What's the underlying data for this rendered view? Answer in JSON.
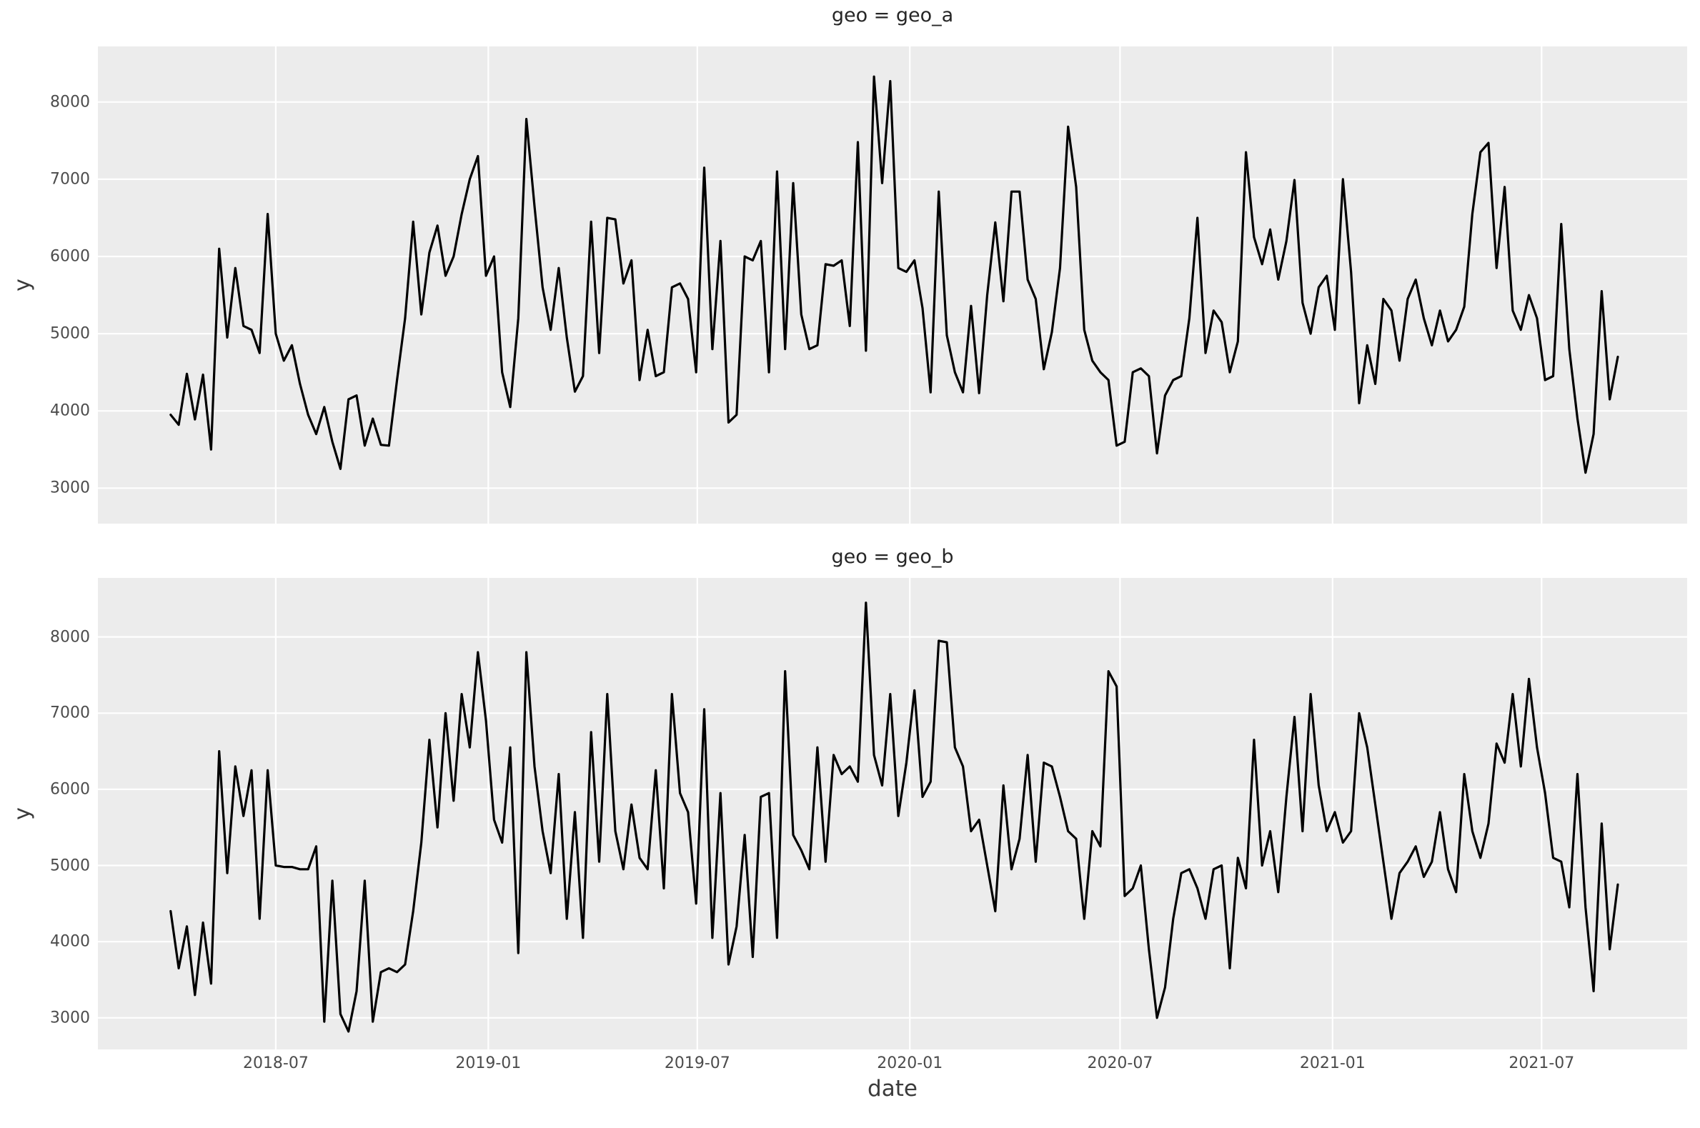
{
  "styles": {
    "panel_bg": "#ececec",
    "grid_color": "#ffffff",
    "line_color": "#000000",
    "tick_color": "#4c4c4c",
    "title_color": "#262626"
  },
  "chart_data": [
    {
      "type": "line",
      "title": "geo = geo_a",
      "xlabel": "date",
      "ylabel": "y",
      "legend": false,
      "grid": true,
      "x_ticks": [
        "2018-07",
        "2019-01",
        "2019-07",
        "2020-01",
        "2020-07",
        "2021-01",
        "2021-07"
      ],
      "show_x_tick_labels": false,
      "y_ticks": [
        8000,
        7000,
        6000,
        5000,
        4000,
        3000
      ],
      "xlim": [
        "2018-01-28",
        "2021-11-04"
      ],
      "ylim": [
        2540,
        8720
      ],
      "series": [
        {
          "name": "y",
          "color": "#000000",
          "start_date": "2018-04-01",
          "interval_days": 7,
          "values": [
            3950,
            3820,
            4480,
            3890,
            4470,
            3500,
            6100,
            4950,
            5850,
            5100,
            5050,
            4750,
            6550,
            5000,
            4650,
            4850,
            4350,
            3950,
            3700,
            4050,
            3600,
            3250,
            4150,
            4200,
            3550,
            3900,
            3560,
            3550,
            4400,
            5200,
            6450,
            5250,
            6050,
            6400,
            5750,
            6000,
            6550,
            7000,
            7300,
            5750,
            6000,
            4500,
            4050,
            5200,
            7780,
            6650,
            5600,
            5050,
            5850,
            4950,
            4250,
            4450,
            6450,
            4750,
            6500,
            6480,
            5650,
            5950,
            4400,
            5050,
            4450,
            4500,
            5600,
            5650,
            5450,
            4500,
            7150,
            4800,
            6200,
            3850,
            3950,
            6000,
            5950,
            6200,
            4500,
            7100,
            4800,
            6950,
            5250,
            4800,
            4850,
            5900,
            5880,
            5950,
            5100,
            7480,
            4780,
            8330,
            6950,
            8270,
            5850,
            5800,
            5950,
            5330,
            4240,
            6840,
            4980,
            4500,
            4240,
            5360,
            4230,
            5500,
            6440,
            5420,
            6840,
            6840,
            5700,
            5450,
            4540,
            5020,
            5850,
            7680,
            6900,
            5050,
            4650,
            4500,
            4400,
            3550,
            3600,
            4500,
            4550,
            4450,
            3450,
            4200,
            4400,
            4450,
            5200,
            6500,
            4750,
            5300,
            5150,
            4500,
            4900,
            7350,
            6250,
            5900,
            6350,
            5700,
            6200,
            6990,
            5400,
            5000,
            5600,
            5750,
            5050,
            7000,
            5800,
            4100,
            4850,
            4350,
            5450,
            5300,
            4650,
            5450,
            5700,
            5200,
            4850,
            5300,
            4900,
            5050,
            5350,
            6550,
            7350,
            7470,
            5850,
            6900,
            5300,
            5050,
            5500,
            5200,
            4400,
            4450,
            6420,
            4800,
            3900,
            3200,
            3700,
            5550,
            4150,
            4700
          ]
        }
      ]
    },
    {
      "type": "line",
      "title": "geo = geo_b",
      "xlabel": "date",
      "ylabel": "y",
      "legend": false,
      "grid": true,
      "x_ticks": [
        "2018-07",
        "2019-01",
        "2019-07",
        "2020-01",
        "2020-07",
        "2021-01",
        "2021-07"
      ],
      "show_x_tick_labels": true,
      "y_ticks": [
        8000,
        7000,
        6000,
        5000,
        4000,
        3000
      ],
      "xlim": [
        "2018-01-28",
        "2021-11-04"
      ],
      "ylim": [
        2585,
        8775
      ],
      "series": [
        {
          "name": "y",
          "color": "#000000",
          "start_date": "2018-04-01",
          "interval_days": 7,
          "values": [
            4400,
            3650,
            4200,
            3300,
            4250,
            3450,
            6500,
            4900,
            6300,
            5650,
            6250,
            4300,
            6250,
            5000,
            4980,
            4980,
            4950,
            4950,
            5250,
            2950,
            4800,
            3050,
            2820,
            3350,
            4800,
            2950,
            3600,
            3650,
            3600,
            3700,
            4400,
            5300,
            6650,
            5500,
            7000,
            5850,
            7250,
            6550,
            7800,
            6900,
            5600,
            5300,
            6550,
            3850,
            7800,
            6300,
            5450,
            4900,
            6200,
            4300,
            5700,
            4050,
            6750,
            5050,
            7250,
            5450,
            4950,
            5800,
            5100,
            4950,
            6250,
            4700,
            7250,
            5950,
            5700,
            4500,
            7050,
            4050,
            5950,
            3700,
            4200,
            5400,
            3800,
            5900,
            5950,
            4050,
            7550,
            5400,
            5200,
            4950,
            6550,
            5050,
            6450,
            6200,
            6300,
            6100,
            8450,
            6450,
            6050,
            7250,
            5650,
            6350,
            7300,
            5900,
            6100,
            7950,
            7930,
            6550,
            6300,
            5450,
            5600,
            5000,
            4400,
            6050,
            4950,
            5350,
            6450,
            5050,
            6350,
            6300,
            5900,
            5450,
            5350,
            4300,
            5450,
            5250,
            7550,
            7350,
            4600,
            4700,
            5000,
            3900,
            3000,
            3400,
            4300,
            4900,
            4950,
            4700,
            4300,
            4950,
            5000,
            3650,
            5100,
            4700,
            6650,
            5000,
            5450,
            4650,
            5900,
            6950,
            5450,
            7250,
            6050,
            5450,
            5700,
            5300,
            5450,
            7000,
            6550,
            5800,
            5050,
            4300,
            4900,
            5050,
            5250,
            4850,
            5050,
            5700,
            4950,
            4650,
            6200,
            5450,
            5100,
            5550,
            6600,
            6350,
            7250,
            6300,
            7450,
            6550,
            5950,
            5100,
            5050,
            4450,
            6200,
            4450,
            3350,
            5550,
            3900,
            4750
          ]
        }
      ]
    }
  ]
}
